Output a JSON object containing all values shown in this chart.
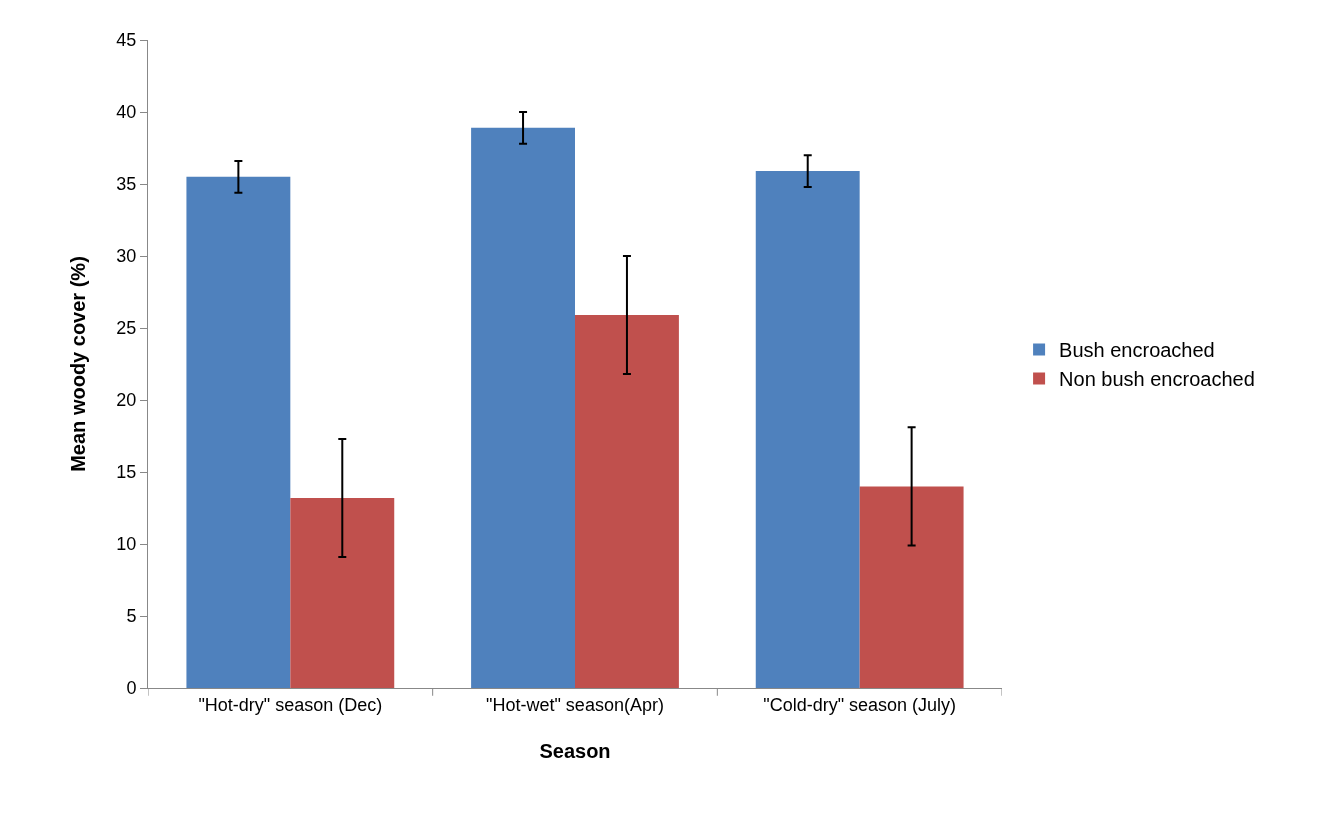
{
  "chart_data": {
    "type": "bar",
    "xlabel": "Season",
    "ylabel": "Mean woody cover (%)",
    "categories": [
      "\"Hot-dry\" season (Dec)",
      "\"Hot-wet\" season(Apr)",
      "\"Cold-dry\" season (July)"
    ],
    "series": [
      {
        "name": "Bush encroached",
        "color": "#4f81bd",
        "values": [
          35.5,
          38.9,
          35.9
        ],
        "errors": [
          1.1,
          1.1,
          1.1
        ]
      },
      {
        "name": "Non bush encroached",
        "color": "#c0504d",
        "values": [
          13.2,
          25.9,
          14.0
        ],
        "errors": [
          4.1,
          4.1,
          4.1
        ]
      }
    ],
    "ylim": [
      0,
      45
    ],
    "yticks": [
      0,
      5,
      10,
      15,
      20,
      25,
      30,
      35,
      40,
      45
    ],
    "grid": false,
    "legend": "right"
  }
}
